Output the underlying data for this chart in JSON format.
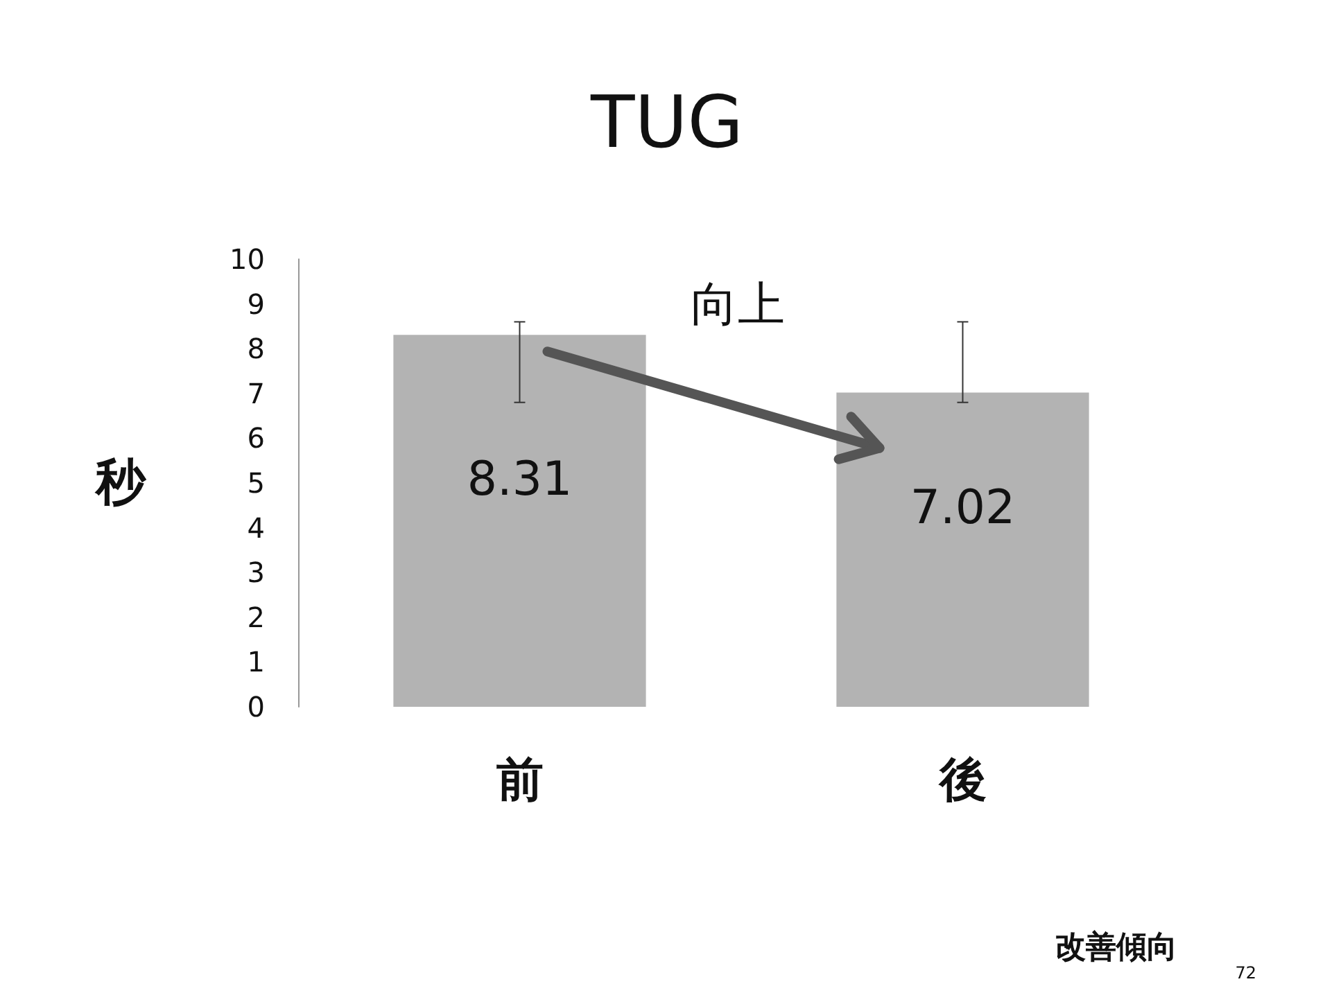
{
  "chart_data": {
    "type": "bar",
    "title": "TUG",
    "ylabel": "秒",
    "categories": [
      "前",
      "後"
    ],
    "values": [
      8.31,
      7.02
    ],
    "errors": [
      [
        6.8,
        8.6
      ],
      [
        6.8,
        8.6
      ]
    ],
    "color": "#b3b3b3",
    "data_labels": true,
    "ylim": [
      0,
      10
    ],
    "yticks": [
      0,
      1,
      2,
      3,
      4,
      5,
      6,
      7,
      8,
      9,
      10
    ],
    "grid": false,
    "legend": false,
    "annotations": [
      "向上",
      "改善傾向",
      "72"
    ]
  }
}
